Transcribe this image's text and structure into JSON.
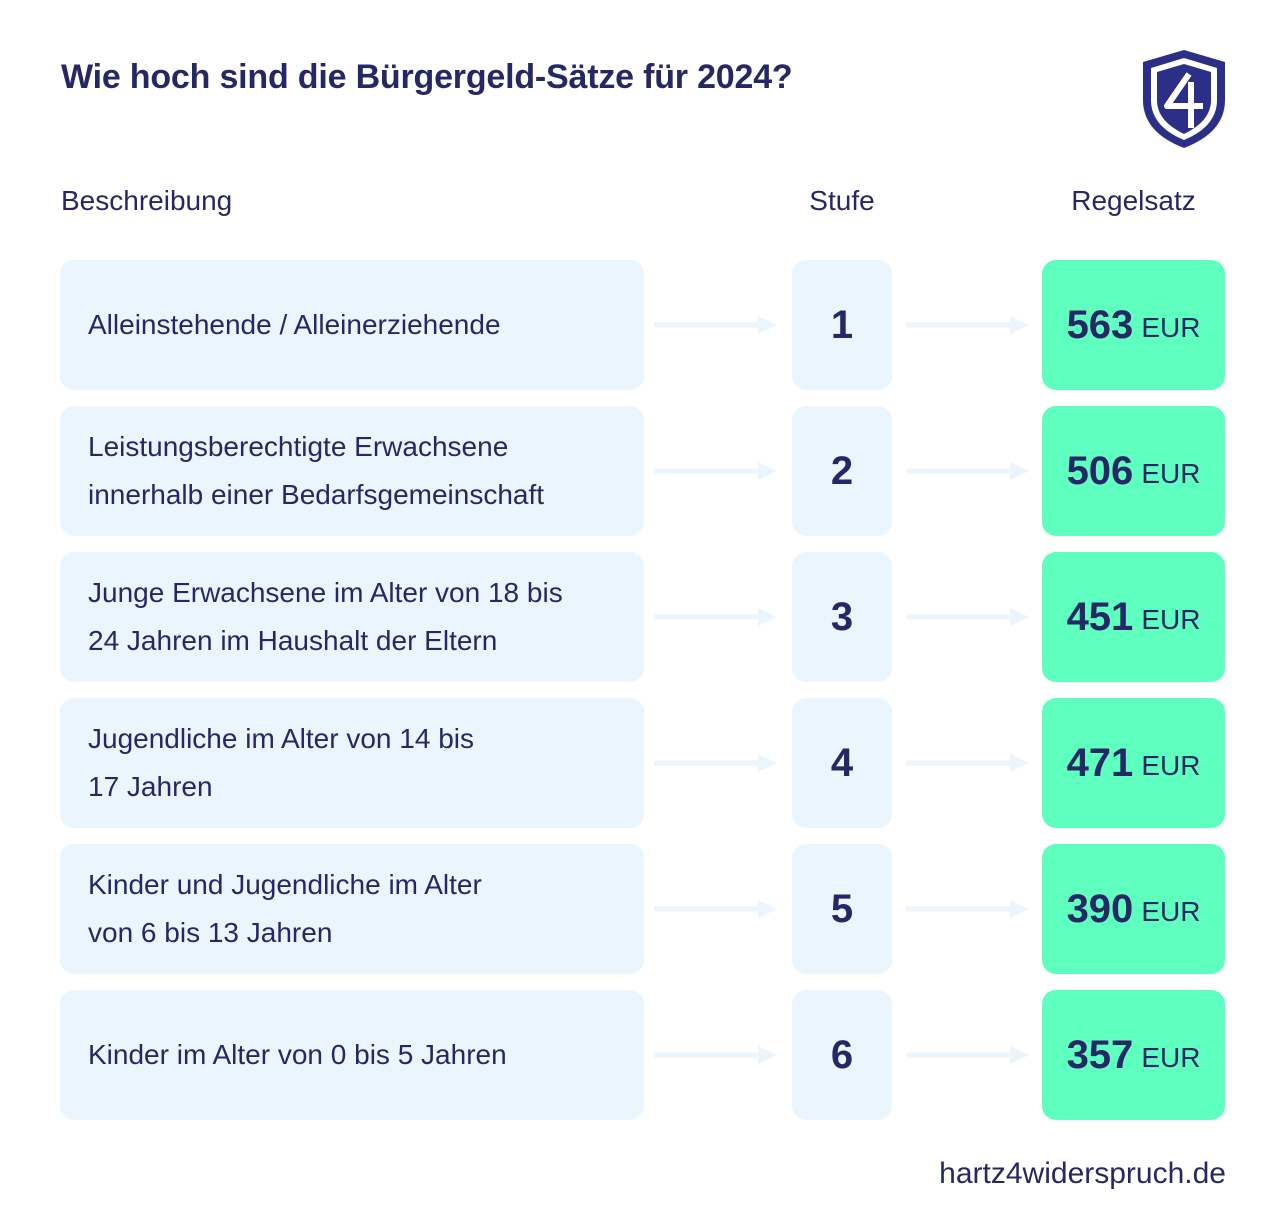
{
  "title": "Wie hoch sind die Bürgergeld-Sätze für 2024?",
  "logo": {
    "icon": "shield-4-logo",
    "text": "4",
    "color": "#2b2f86"
  },
  "headers": {
    "description": "Beschreibung",
    "level": "Stufe",
    "rate": "Regelsatz"
  },
  "rows": [
    {
      "description": "Alleinstehende / Alleinerziehende",
      "level": "1",
      "amount": "563",
      "currency": "EUR"
    },
    {
      "description": "Leistungsberechtigte Erwachsene\ninnerhalb einer Bedarfsgemeinschaft",
      "level": "2",
      "amount": "506",
      "currency": "EUR"
    },
    {
      "description": "Junge Erwachsene im Alter von 18 bis\n24 Jahren im Haushalt der Eltern",
      "level": "3",
      "amount": "451",
      "currency": "EUR"
    },
    {
      "description": "Jugendliche im Alter von 14 bis\n17 Jahren",
      "level": "4",
      "amount": "471",
      "currency": "EUR"
    },
    {
      "description": "Kinder und Jugendliche im Alter\nvon 6 bis 13 Jahren",
      "level": "5",
      "amount": "390",
      "currency": "EUR"
    },
    {
      "description": "Kinder im Alter von 0 bis 5 Jahren",
      "level": "6",
      "amount": "357",
      "currency": "EUR"
    }
  ],
  "footer": "hartz4widerspruch.de",
  "colors": {
    "text": "#262866",
    "box": "#eaf5fd",
    "accent": "#5effbf",
    "arrow": "#eaf5fd"
  }
}
